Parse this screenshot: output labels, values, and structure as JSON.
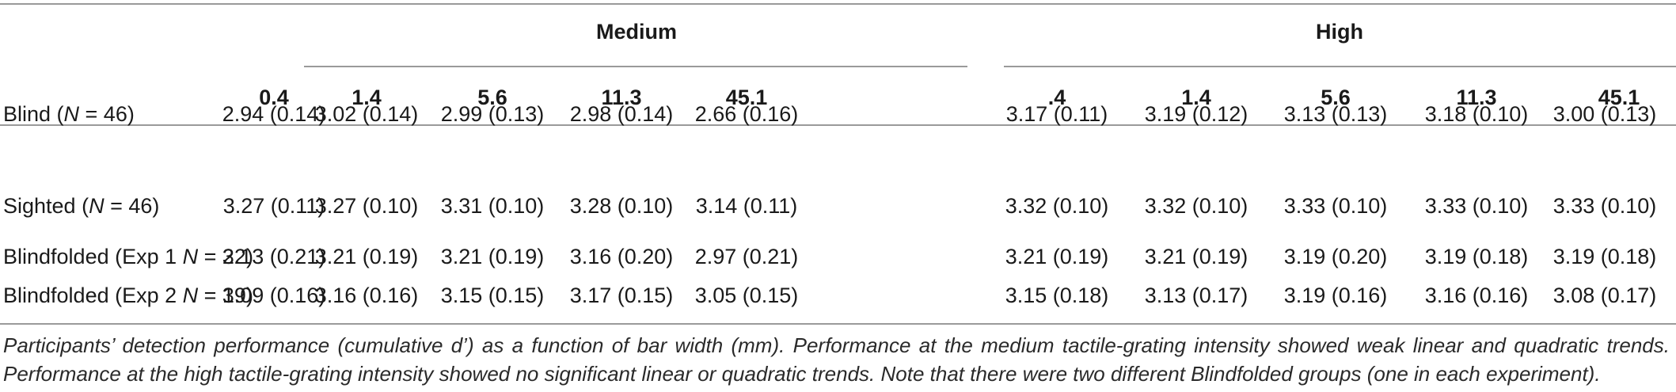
{
  "table": {
    "groups": [
      {
        "label": "Medium"
      },
      {
        "label": "High"
      }
    ],
    "columns": [
      "0.4",
      "1.4",
      "5.6",
      "11.3",
      "45.1",
      ".4",
      "1.4",
      "5.6",
      "11.3",
      "45.1"
    ],
    "rows": [
      {
        "label_pre": "Blind (",
        "label_n": "N",
        "label_post": " = 46)",
        "cells": [
          "2.94 (0.14)",
          "3.02 (0.14)",
          "2.99 (0.13)",
          "2.98 (0.14)",
          "2.66 (0.16)",
          "3.17 (0.11)",
          "3.19 (0.12)",
          "3.13 (0.13)",
          "3.18 (0.10)",
          "3.00 (0.13)"
        ]
      },
      {
        "label_pre": "Sighted (",
        "label_n": "N",
        "label_post": " = 46)",
        "cells": [
          "3.27 (0.11)",
          "3.27 (0.10)",
          "3.31 (0.10)",
          "3.28 (0.10)",
          "3.14 (0.11)",
          "3.32 (0.10)",
          "3.32 (0.10)",
          "3.33 (0.10)",
          "3.33 (0.10)",
          "3.33 (0.10)"
        ]
      },
      {
        "label_pre": "Blindfolded (Exp 1 ",
        "label_n": "N",
        "label_post": " = 22)",
        "cells": [
          "3.13 (0.21)",
          "3.21 (0.19)",
          "3.21 (0.19)",
          "3.16 (0.20)",
          "2.97 (0.21)",
          "3.21 (0.19)",
          "3.21 (0.19)",
          "3.19 (0.20)",
          "3.19 (0.18)",
          "3.19 (0.18)"
        ]
      },
      {
        "label_pre": "Blindfolded (Exp 2 ",
        "label_n": "N",
        "label_post": " = 19)",
        "cells": [
          "3.09 (0.16)",
          "3.16 (0.16)",
          "3.15 (0.15)",
          "3.17 (0.15)",
          "3.05 (0.15)",
          "3.15 (0.18)",
          "3.13 (0.17)",
          "3.19 (0.16)",
          "3.16 (0.16)",
          "3.08 (0.17)"
        ]
      }
    ]
  },
  "caption": "Participants’ detection performance (cumulative d’) as a function of bar width (mm). Performance at the medium tactile-grating intensity showed weak linear and quadratic trends. Performance at the high tactile-grating intensity showed no significant linear or quadratic trends. Note that there were two different Blindfolded groups (one in each experiment)."
}
